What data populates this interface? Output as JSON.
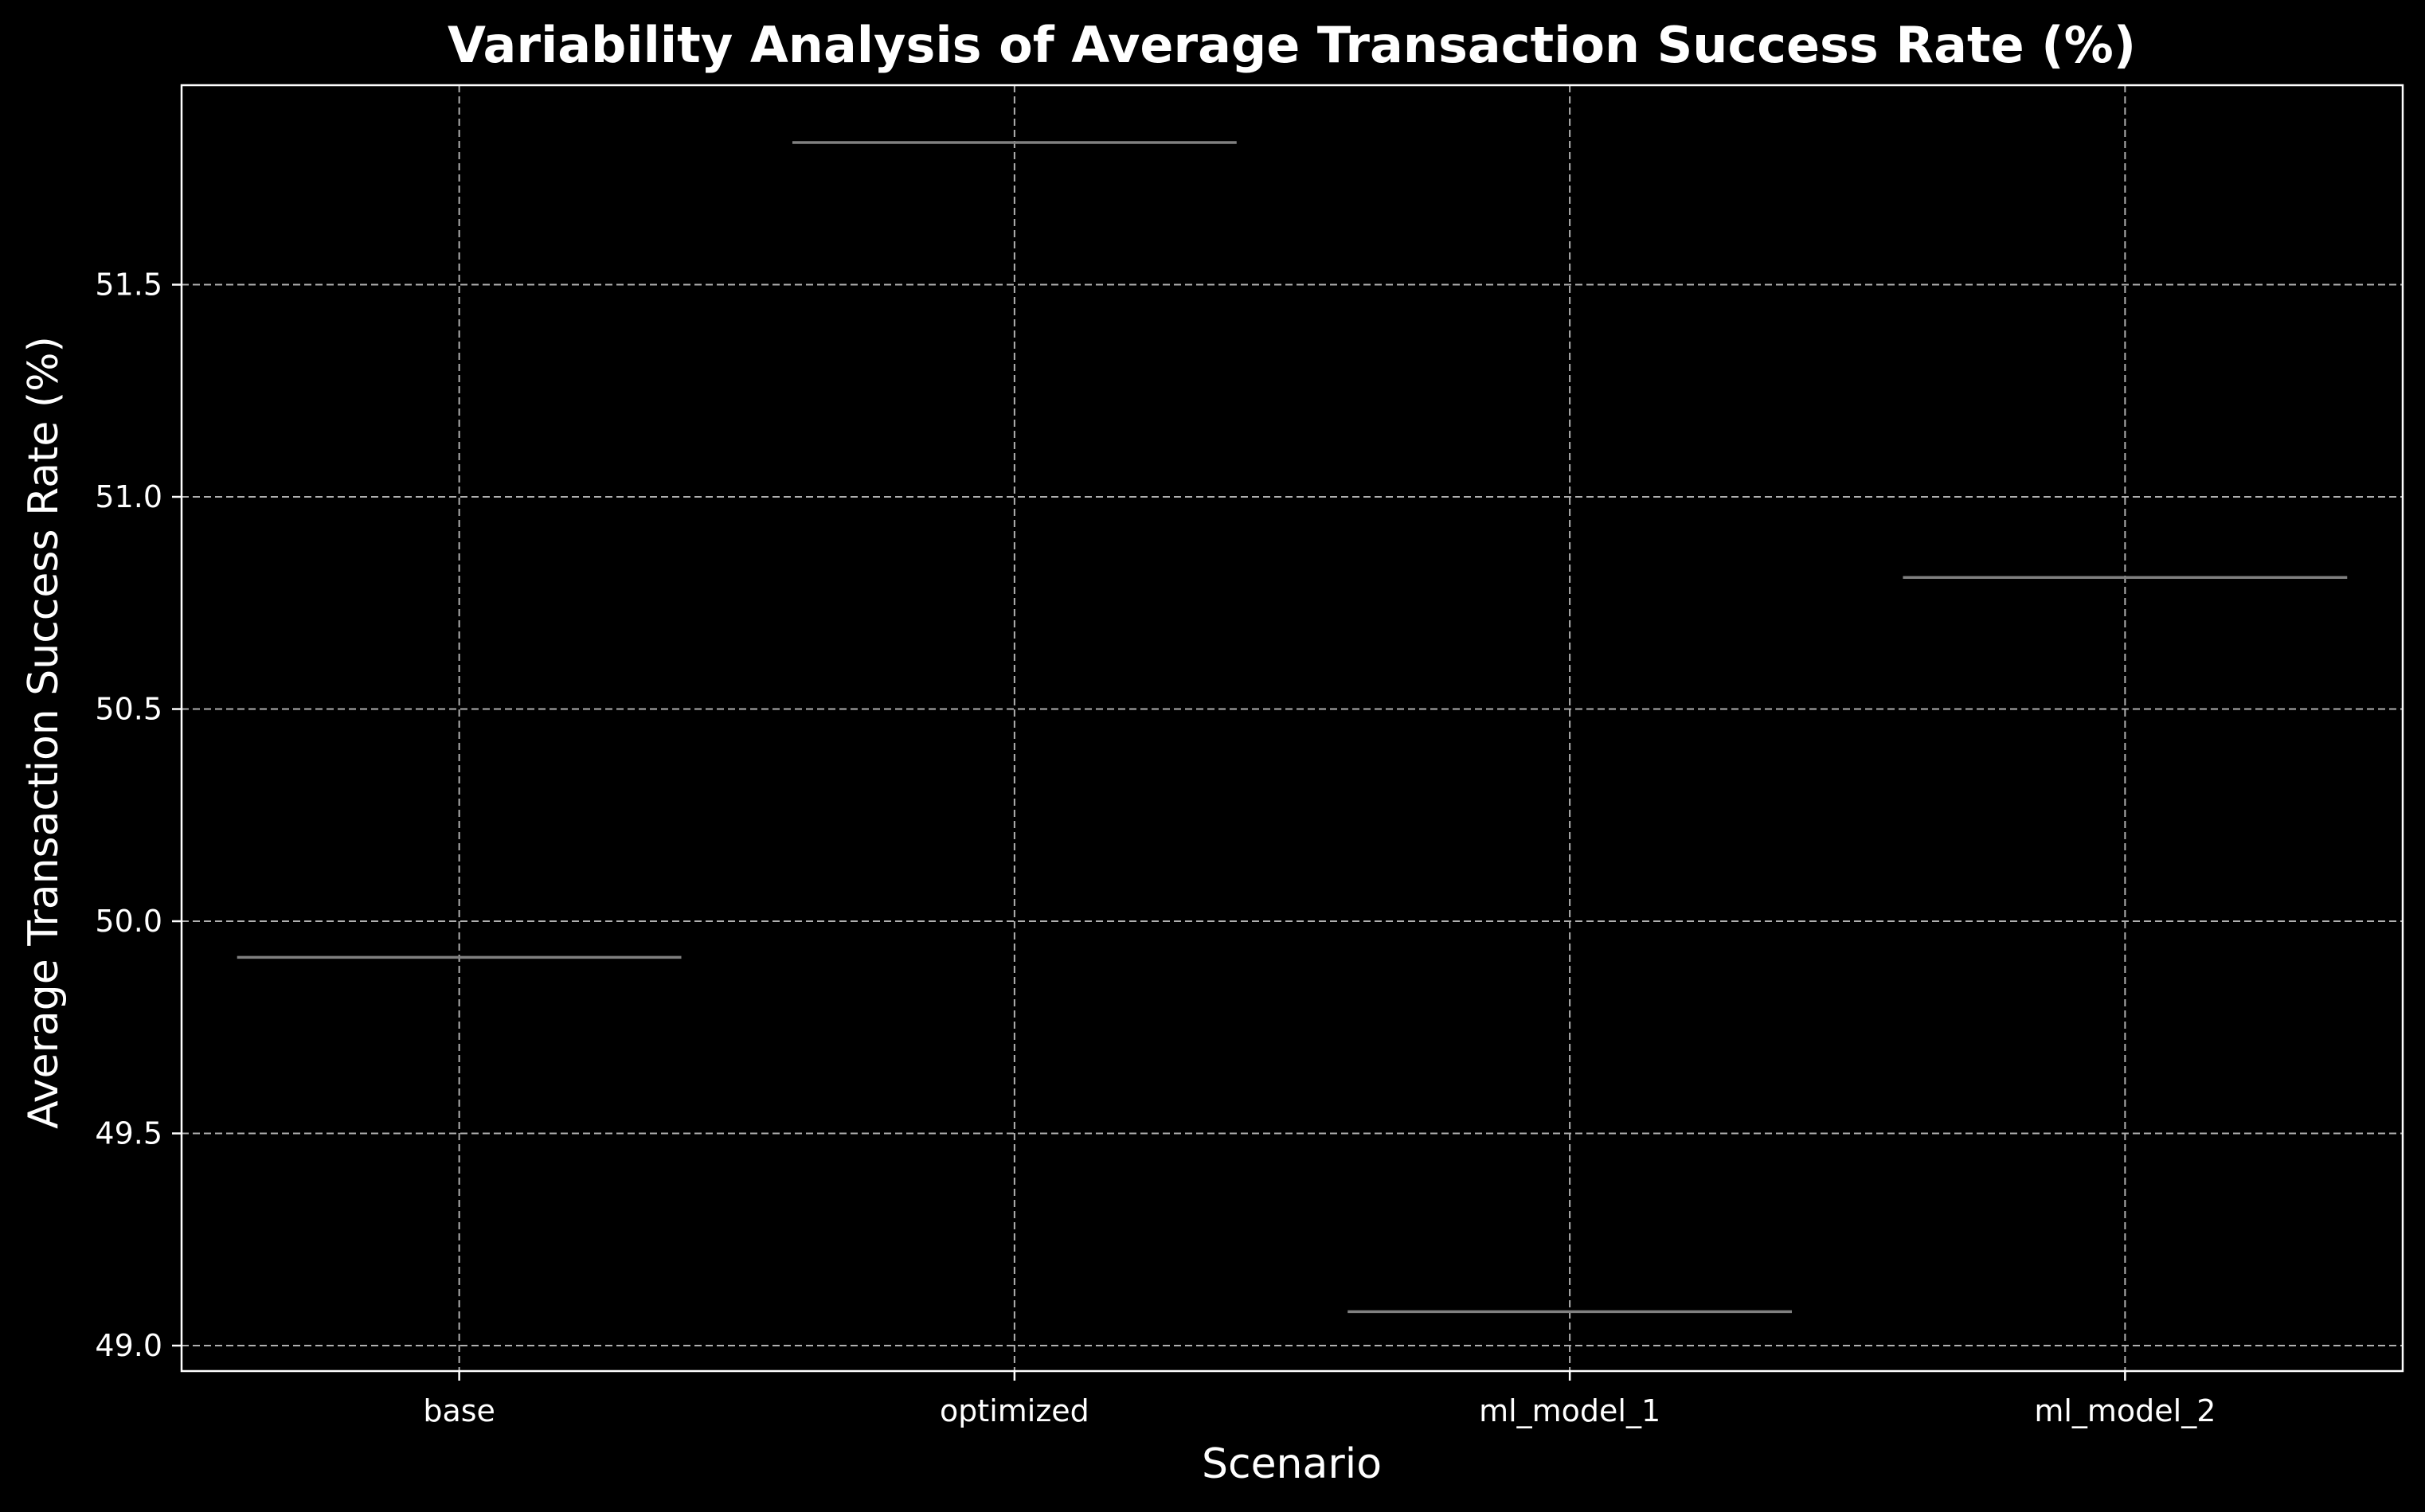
{
  "chart_data": {
    "type": "box",
    "title": "Variability Analysis of Average Transaction Success Rate (%)",
    "xlabel": "Scenario",
    "ylabel": "Average Transaction Success Rate (%)",
    "categories": [
      "base",
      "optimized",
      "ml_model_1",
      "ml_model_2"
    ],
    "values": [
      49.915,
      51.835,
      49.08,
      50.81
    ],
    "ylim": [
      48.94,
      51.97
    ],
    "yticks": [
      "49.0",
      "49.5",
      "50.0",
      "50.5",
      "51.0",
      "51.5"
    ],
    "grid": true,
    "colors": {
      "background": "#000000",
      "axes": "#ffffff",
      "grid": "#b0b0b0",
      "series": "#808080",
      "text": "#ffffff"
    }
  }
}
